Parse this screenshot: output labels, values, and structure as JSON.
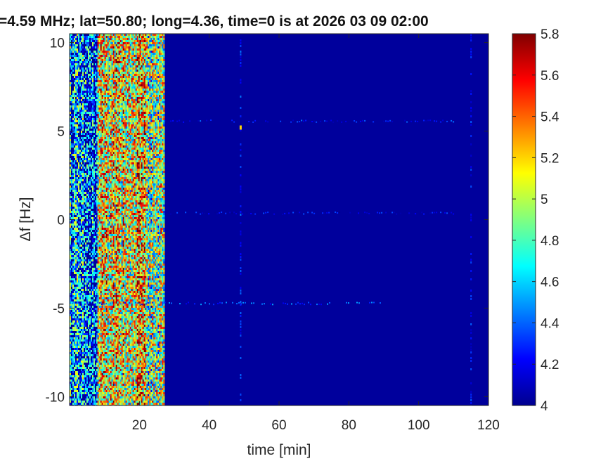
{
  "chart_data": {
    "type": "heatmap",
    "title": "=4.59 MHz;  lat=50.80; long=4.36, time=0 is at 2026 03 09 02:00",
    "xlabel": "time [min]",
    "ylabel": "Δf [Hz]",
    "xlim": [
      0,
      120
    ],
    "ylim": [
      -10.5,
      10.5
    ],
    "x_ticks": [
      20,
      40,
      60,
      80,
      100,
      120
    ],
    "x_tick_labels": [
      "20",
      "40",
      "60",
      "80",
      "100",
      "120"
    ],
    "y_ticks": [
      10,
      5,
      0,
      -5,
      -10
    ],
    "y_tick_labels": [
      "10",
      "5",
      "0",
      "-5",
      "-10"
    ],
    "colormap": "jet",
    "colorbar": {
      "limits": [
        4,
        5.8
      ],
      "ticks": [
        5.8,
        5.6,
        5.4,
        5.2,
        5,
        4.8,
        4.6,
        4.4,
        4.2,
        4
      ],
      "tick_labels": [
        "5.8",
        "5.6",
        "5.4",
        "5.2",
        "5",
        "4.8",
        "4.6",
        "4.4",
        "4.2",
        "4"
      ]
    },
    "background_level": 4.05,
    "high_intensity_bands": [
      {
        "time_start_min": 0,
        "time_end_min": 8,
        "mean_level": 4.45
      },
      {
        "time_start_min": 8,
        "time_end_min": 22,
        "mean_level": 5.15
      },
      {
        "time_start_min": 22,
        "time_end_min": 27,
        "mean_level": 4.9
      }
    ],
    "horizontal_traces": [
      {
        "delta_f_hz": 5.6,
        "time_start_min": 27,
        "time_end_min": 110,
        "level": 4.25
      },
      {
        "delta_f_hz": 0.4,
        "time_start_min": 27,
        "time_end_min": 110,
        "level": 4.2
      },
      {
        "delta_f_hz": -4.7,
        "time_start_min": 0,
        "time_end_min": 90,
        "level": 4.35
      }
    ],
    "vertical_features": [
      {
        "time_min": 49,
        "level": 4.3
      },
      {
        "time_min": 115,
        "level": 4.25
      }
    ],
    "hot_spots": [
      {
        "time_min": 49,
        "delta_f_hz": 5.2,
        "level": 5.2
      }
    ]
  }
}
